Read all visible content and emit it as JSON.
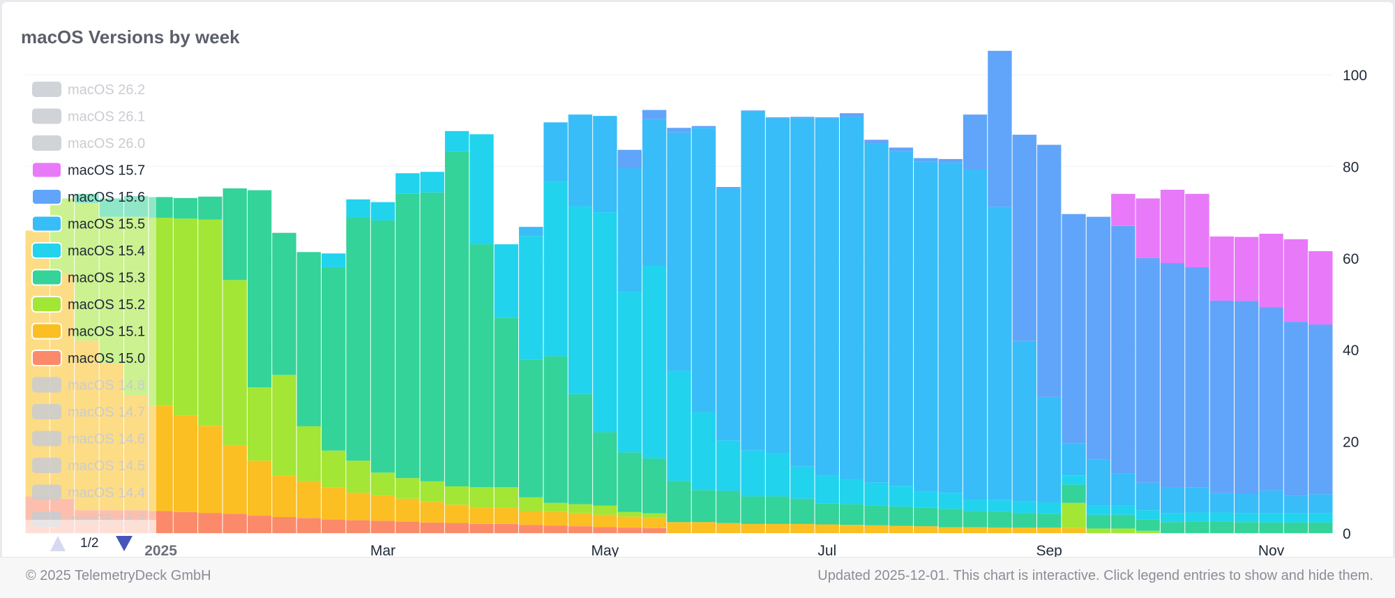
{
  "title": "macOS Versions by week",
  "footer": {
    "copyright": "© 2025 TelemetryDeck GmbH",
    "note": "Updated 2025-12-01. This chart is interactive. Click legend entries to show and hide them."
  },
  "legend": {
    "page": "1/2",
    "items": [
      {
        "label": "macOS 26.2",
        "color": "#c8cbd1",
        "hidden": true
      },
      {
        "label": "macOS 26.1",
        "color": "#c8cbd1",
        "hidden": true
      },
      {
        "label": "macOS 26.0",
        "color": "#c8cbd1",
        "hidden": true
      },
      {
        "label": "macOS 15.7",
        "color": "#e879f9",
        "hidden": false
      },
      {
        "label": "macOS 15.6",
        "color": "#60a5fa",
        "hidden": false
      },
      {
        "label": "macOS 15.5",
        "color": "#38bdf8",
        "hidden": false
      },
      {
        "label": "macOS 15.4",
        "color": "#22d3ee",
        "hidden": false
      },
      {
        "label": "macOS 15.3",
        "color": "#34d399",
        "hidden": false
      },
      {
        "label": "macOS 15.2",
        "color": "#a3e635",
        "hidden": false
      },
      {
        "label": "macOS 15.1",
        "color": "#fbbf24",
        "hidden": false
      },
      {
        "label": "macOS 15.0",
        "color": "#fb8a6a",
        "hidden": false
      },
      {
        "label": "macOS 14.8",
        "color": "#c8cbd1",
        "hidden": true
      },
      {
        "label": "macOS 14.7",
        "color": "#c8cbd1",
        "hidden": true
      },
      {
        "label": "macOS 14.6",
        "color": "#c8cbd1",
        "hidden": true
      },
      {
        "label": "macOS 14.5",
        "color": "#c8cbd1",
        "hidden": true
      },
      {
        "label": "macOS 14.4",
        "color": "#c8cbd1",
        "hidden": true
      },
      {
        "label": "macOS 14.3",
        "color": "#c8cbd1",
        "hidden": true
      }
    ]
  },
  "chart_data": {
    "type": "bar",
    "stacked": true,
    "title": "macOS Versions by week",
    "ylim": [
      0,
      100
    ],
    "yticks": [
      0,
      20,
      40,
      60,
      80,
      100
    ],
    "x_tick_labels": [
      {
        "label": "2025",
        "week": 5
      },
      {
        "label": "Mar",
        "week": 14
      },
      {
        "label": "May",
        "week": 23
      },
      {
        "label": "Jul",
        "week": 32
      },
      {
        "label": "Sep",
        "week": 41
      },
      {
        "label": "Nov",
        "week": 50
      }
    ],
    "weeks": 53,
    "series": [
      {
        "name": "macOS 15.0",
        "color": "#fb8a6a",
        "values": [
          8,
          7.5,
          5,
          5,
          5,
          4.8,
          4.6,
          4.4,
          4.2,
          3.8,
          3.5,
          3.3,
          3,
          2.8,
          2.7,
          2.5,
          2.3,
          2.2,
          2,
          2,
          1.8,
          1.6,
          1.5,
          1.3,
          1.2,
          1.1,
          0,
          0,
          0,
          0,
          0,
          0,
          0,
          0,
          0,
          0,
          0,
          0,
          0,
          0,
          0,
          0,
          0,
          0,
          0,
          0,
          0,
          0,
          0,
          0,
          0,
          0,
          0
        ]
      },
      {
        "name": "macOS 15.1",
        "color": "#fbbf24",
        "values": [
          58,
          49,
          37,
          32,
          25,
          23,
          21,
          19,
          15,
          12,
          9,
          8,
          7,
          6,
          5.5,
          5,
          4.5,
          4,
          3.5,
          3.5,
          3,
          3,
          2.8,
          2.7,
          2.4,
          2.2,
          2.4,
          2.4,
          2.2,
          2,
          2,
          2,
          1.9,
          1.8,
          1.7,
          1.6,
          1.5,
          1.3,
          1.3,
          1.2,
          1.2,
          1.2,
          1.1,
          0,
          0,
          0,
          0,
          0,
          0,
          0,
          0,
          0,
          0
        ]
      },
      {
        "name": "macOS 15.2",
        "color": "#a3e635",
        "values": [
          0,
          16.5,
          30,
          32,
          39,
          41,
          43,
          45,
          36,
          16,
          22,
          12,
          8,
          7,
          5,
          4.5,
          4.5,
          4,
          4.5,
          4.5,
          3,
          2,
          2,
          2,
          1,
          1,
          0,
          0,
          0,
          0,
          0,
          0,
          0,
          0,
          0,
          0,
          0,
          0,
          0,
          0,
          0,
          0,
          5.5,
          1,
          1,
          0.5,
          0,
          0,
          0,
          0,
          0,
          0,
          0
        ]
      },
      {
        "name": "macOS 15.3",
        "color": "#34d399",
        "values": [
          0,
          0,
          2,
          4,
          4.5,
          4.5,
          4.5,
          5,
          20,
          43,
          31,
          38,
          40,
          53,
          55,
          62,
          63,
          73,
          53,
          37,
          30,
          32,
          24,
          16,
          13,
          12,
          9,
          7,
          7,
          6,
          6,
          5.5,
          4.6,
          4.5,
          4.3,
          4.2,
          4,
          4,
          3.5,
          3.5,
          3.2,
          3,
          4,
          3,
          3,
          2.5,
          2.4,
          2.5,
          2.5,
          2.4,
          2.3,
          2.3,
          2.3
        ]
      },
      {
        "name": "macOS 15.4",
        "color": "#22d3ee",
        "values": [
          0,
          0,
          0,
          0,
          0,
          0,
          0,
          0,
          0,
          0,
          0,
          0,
          3,
          4,
          4,
          4.5,
          4.5,
          4.5,
          24,
          16,
          27,
          38,
          41,
          48,
          35,
          42,
          24,
          17,
          11,
          10,
          9.5,
          7,
          6,
          5.5,
          5,
          4.5,
          3.5,
          3.5,
          2.5,
          2.5,
          2.5,
          2.5,
          2,
          2,
          2,
          2,
          2,
          2,
          2,
          2,
          2,
          2,
          2
        ]
      },
      {
        "name": "macOS 15.5",
        "color": "#38bdf8",
        "values": [
          0,
          0,
          0,
          0,
          0,
          0,
          0,
          0,
          0,
          0,
          0,
          0,
          0,
          0,
          0,
          0,
          0,
          0,
          0,
          0,
          2,
          13,
          20,
          21,
          27,
          32,
          52,
          62,
          55,
          74,
          73,
          76,
          78,
          79,
          74,
          73,
          72,
          72,
          72,
          64,
          35,
          23,
          7,
          10,
          7,
          6,
          5.5,
          5.5,
          4.2,
          4.2,
          5,
          3.8,
          4.2
        ]
      },
      {
        "name": "macOS 15.6",
        "color": "#60a5fa",
        "values": [
          0,
          0,
          0,
          0,
          0,
          0,
          0,
          0,
          0,
          0,
          0,
          0,
          0,
          0,
          0,
          0,
          0,
          0,
          0,
          0,
          0,
          0,
          0,
          0,
          4,
          2,
          1,
          0.4,
          0.3,
          0.2,
          0.2,
          0.3,
          0.2,
          0.8,
          0.8,
          0.8,
          0.8,
          0.8,
          12,
          34,
          45,
          55,
          50,
          53,
          54,
          49,
          49,
          48,
          42,
          42,
          40,
          38,
          37
        ]
      },
      {
        "name": "macOS 15.7",
        "color": "#e879f9",
        "values": [
          0,
          0,
          0,
          0,
          0,
          0,
          0,
          0,
          0,
          0,
          0,
          0,
          0,
          0,
          0,
          0,
          0,
          0,
          0,
          0,
          0,
          0,
          0,
          0,
          0,
          0,
          0,
          0,
          0,
          0,
          0,
          0,
          0,
          0,
          0,
          0,
          0,
          0,
          0,
          0,
          0,
          0,
          0,
          0,
          7,
          13,
          16,
          16,
          14,
          14,
          16,
          18,
          16
        ]
      }
    ]
  }
}
